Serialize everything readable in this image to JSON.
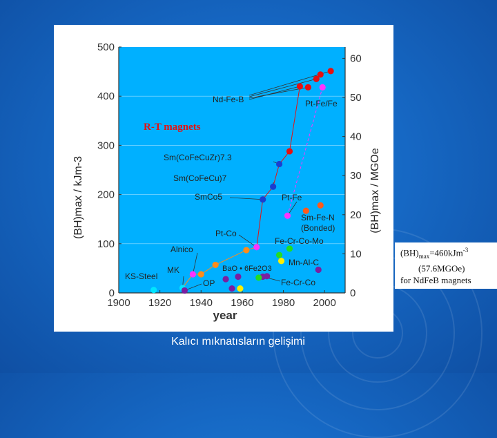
{
  "slide": {
    "caption": "Kalıcı mıknatısların gelişimi",
    "colors": {
      "background": "#1668c4",
      "plot_area": "#00b0ff",
      "text": "#ffffff"
    }
  },
  "note": {
    "line1_prefix": "(BH)",
    "line1_sub": "max",
    "line1_value": "=460kJm",
    "line1_sup": "-3",
    "line2": "(57.6MGOe)",
    "line3": "for NdFeB magnets"
  },
  "chart_data": {
    "type": "scatter",
    "title": "",
    "xlabel": "year",
    "ylabel": "(BH)max / kJm-3",
    "ylabel_right": "(BH)max / MGOe",
    "xlim": [
      1900,
      2010
    ],
    "ylim": [
      0,
      500
    ],
    "ylim_right": [
      0,
      62.9
    ],
    "x_ticks": [
      1900,
      1920,
      1940,
      1960,
      1980,
      2000
    ],
    "y_ticks": [
      0,
      100,
      200,
      300,
      400,
      500
    ],
    "y_ticks_right": [
      0,
      10,
      20,
      30,
      40,
      50,
      60
    ],
    "inner_label": "R-T magnets",
    "series": [
      {
        "color": "#00e5ff",
        "points": [
          [
            1917,
            6
          ],
          [
            1931,
            10
          ]
        ]
      },
      {
        "color": "#ff33ff",
        "points": [
          [
            1936,
            38
          ],
          [
            1967,
            93
          ],
          [
            1982,
            157
          ],
          [
            1999,
            418
          ]
        ]
      },
      {
        "color": "#ff8c1a",
        "points": [
          [
            1940,
            38
          ],
          [
            1947,
            57
          ],
          [
            1962,
            87
          ]
        ]
      },
      {
        "color": "#7a1fa0",
        "points": [
          [
            1932,
            5
          ],
          [
            1955,
            9
          ]
        ]
      },
      {
        "color": "#1a3fd0",
        "points": [
          [
            1970,
            190
          ],
          [
            1975,
            216
          ],
          [
            1978,
            262
          ]
        ]
      },
      {
        "color": "#e61010",
        "points": [
          [
            1983,
            288
          ],
          [
            1988,
            420
          ],
          [
            1992,
            418
          ],
          [
            1996,
            435
          ],
          [
            1998,
            444
          ],
          [
            2003,
            451
          ]
        ]
      },
      {
        "color": "#ff5a1a",
        "points": [
          [
            1991,
            167
          ],
          [
            1998,
            178
          ]
        ]
      },
      {
        "color": "#7a1fa0",
        "points": [
          [
            1952,
            28
          ],
          [
            1958,
            33
          ],
          [
            1970,
            33
          ]
        ]
      },
      {
        "color": "#22dd22",
        "points": [
          [
            1968,
            31
          ],
          [
            1978,
            77
          ],
          [
            1983,
            90
          ]
        ]
      },
      {
        "color": "#ffee00",
        "points": [
          [
            1959,
            9
          ],
          [
            1979,
            65
          ]
        ]
      },
      {
        "color": "#7a1fa0",
        "points": [
          [
            1972,
            34
          ],
          [
            1997,
            47
          ]
        ]
      }
    ],
    "annotations": [
      "Nd-Fe-B",
      "Pt-Fe/Fe",
      "Sm(CoFeCuZr)7.3",
      "Sm(CoFeCu)7",
      "SmCo5",
      "Pt-Fe",
      "Sm-Fe-N",
      "(Bonded)",
      "Pt-Co",
      "Fe-Cr-Co-Mo",
      "Alnico",
      "Mn-Al-C",
      "BaO • 6Fe2O3",
      "MK",
      "KS-Steel",
      "OP",
      "Fe-Cr-Co"
    ]
  }
}
